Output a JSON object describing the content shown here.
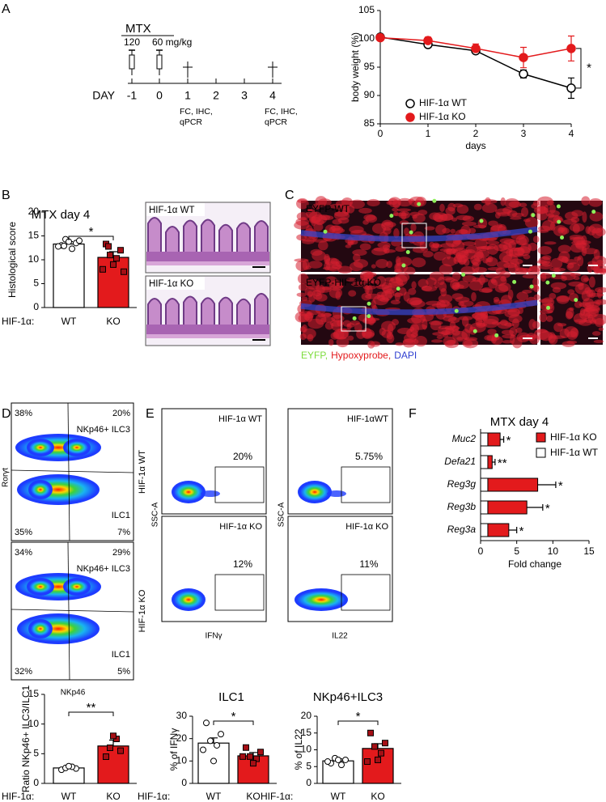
{
  "panels": [
    "A",
    "B",
    "C",
    "D",
    "E",
    "F"
  ],
  "timeline": {
    "drug": "MTX",
    "doses": [
      "120",
      "60 mg/kg"
    ],
    "day_label": "DAY",
    "days": [
      "-1",
      "0",
      "1",
      "2",
      "3",
      "4"
    ],
    "readouts": [
      [
        "FC, IHC,",
        "qPCR"
      ],
      [
        "FC, IHC,",
        "qPCR"
      ]
    ]
  },
  "histology": {
    "labels": [
      "HIF-1α WT",
      "HIF-1α KO"
    ]
  },
  "fluorescence": {
    "labels": [
      "EYFP-WT",
      "EYFP-HIF-1α KO"
    ],
    "legend": [
      {
        "text": "EYFP,",
        "color": "#7ddc3c"
      },
      {
        "text": "Hypoxyprobe,",
        "color": "#e31a1c"
      },
      {
        "text": "DAPI",
        "color": "#2f3fd0"
      }
    ]
  },
  "flow_D": {
    "y_label": "Rorγt",
    "x_label": "NKp46",
    "plots": [
      {
        "tl": "38%",
        "tr": "20%",
        "upper_gate": "NKp46+ ILC3",
        "lower_gate": "ILC1",
        "bl": "35%",
        "br": "7%",
        "group": "HIF-1α WT"
      },
      {
        "tl": "34%",
        "tr": "29%",
        "upper_gate": "NKp46+ ILC3",
        "lower_gate": "ILC1",
        "bl": "32%",
        "br": "5%",
        "group": "HIF-1α KO"
      }
    ]
  },
  "flow_E": {
    "columns": [
      {
        "x_label": "IFNγ",
        "y_label": "SSC-A",
        "plots": [
          {
            "group": "HIF-1α WT",
            "gate": "20%"
          },
          {
            "group": "HIF-1α KO",
            "gate": "12%"
          }
        ]
      },
      {
        "x_label": "IL22",
        "y_label": "SSC-A",
        "plots": [
          {
            "group": "HIF-1αWT",
            "gate": "5.75%"
          },
          {
            "group": "HIF-1α KO",
            "gate": "11%"
          }
        ]
      }
    ]
  },
  "chart_data": [
    {
      "type": "line",
      "x": [
        0,
        1,
        2,
        3,
        4
      ],
      "xlim": [
        0,
        4
      ],
      "xticks": [
        0,
        1,
        2,
        3,
        4
      ],
      "ylim": [
        85,
        105
      ],
      "yticks": [
        85,
        90,
        95,
        100,
        105
      ],
      "x_label": "days",
      "y_label": "body weight (%)",
      "annotation": "*",
      "series": [
        {
          "name": "HIF-1α WT",
          "color": "#000000",
          "marker": "open",
          "values": [
            100.3,
            99,
            97.9,
            93.8,
            91.3
          ],
          "errors": [
            0.5,
            0.4,
            0.4,
            0.7,
            1.8
          ]
        },
        {
          "name": "HIF-1α KO",
          "color": "#e31a1c",
          "marker": "filled",
          "values": [
            100.2,
            99.7,
            98.3,
            96.7,
            98.3
          ],
          "errors": [
            0.3,
            0.6,
            0.8,
            1.8,
            2.2
          ]
        }
      ]
    },
    {
      "type": "bar",
      "title": "MTX day 4",
      "category_label": "HIF-1α:",
      "categories": [
        "WT",
        "KO"
      ],
      "values": [
        13.3,
        10.5
      ],
      "errors": [
        0.5,
        1.2
      ],
      "points": [
        [
          13,
          13.5,
          14.3,
          12.3,
          13.8,
          12.8,
          14,
          12.9
        ],
        [
          13.3,
          12,
          11,
          10.3,
          9,
          8,
          7.5,
          12.8
        ]
      ],
      "colors": [
        "#ffffff",
        "#e31a1c"
      ],
      "point_colors": [
        "#ffffff",
        "#a50f15"
      ],
      "ylim": [
        0,
        20
      ],
      "yticks": [
        0,
        5,
        10,
        15,
        20
      ],
      "y_label": "Histological score",
      "annotation": "*"
    },
    {
      "type": "barh",
      "title": "MTX day 4",
      "categories": [
        "Muc2",
        "Defa21",
        "Reg3g",
        "Reg3b",
        "Reg3a"
      ],
      "series": [
        {
          "name": "HIF-1α KO",
          "color": "#e31a1c",
          "values": [
            2.7,
            1.6,
            7.9,
            6.4,
            3.9
          ],
          "errors": [
            0.5,
            0.4,
            2.5,
            2.2,
            1.1
          ]
        },
        {
          "name": "HIF-1α WT",
          "color": "#ffffff",
          "values": [
            1,
            1,
            1,
            1,
            1
          ]
        }
      ],
      "annotations": [
        "*",
        "**",
        "*",
        "*",
        "*"
      ],
      "xlim": [
        0,
        15
      ],
      "xticks": [
        0,
        5,
        10,
        15
      ],
      "x_label": "Fold change"
    },
    {
      "type": "bar",
      "category_label": "HIF-1α:",
      "categories": [
        "WT",
        "KO"
      ],
      "values": [
        2.6,
        6.3
      ],
      "errors": [
        0.2,
        1.0
      ],
      "points": [
        [
          2.3,
          2.5,
          2.6,
          2.8,
          2.9
        ],
        [
          4.5,
          5.5,
          6,
          7.5,
          8
        ]
      ],
      "colors": [
        "#ffffff",
        "#e31a1c"
      ],
      "point_colors": [
        "#ffffff",
        "#a50f15"
      ],
      "ylim": [
        0,
        15
      ],
      "yticks": [
        0,
        5,
        10,
        15
      ],
      "y_label": "Ratio NKp46+ ILC3/ILC1",
      "annotation": "**"
    },
    {
      "type": "bar",
      "title": "ILC1",
      "category_label": "HIF-1α:",
      "categories": [
        "WT",
        "KO"
      ],
      "values": [
        18,
        12.3
      ],
      "errors": [
        2.3,
        1.5
      ],
      "points": [
        [
          27,
          22,
          19,
          17,
          10,
          15
        ],
        [
          16,
          14,
          12,
          11,
          9,
          12
        ]
      ],
      "colors": [
        "#ffffff",
        "#e31a1c"
      ],
      "point_colors": [
        "#ffffff",
        "#a50f15"
      ],
      "ylim": [
        0,
        30
      ],
      "yticks": [
        0,
        10,
        20,
        30
      ],
      "y_label": "% of IFNγ",
      "annotation": "*"
    },
    {
      "type": "bar",
      "title": "NKp46+ILC3",
      "category_label": "HIF-1α:",
      "categories": [
        "WT",
        "KO"
      ],
      "values": [
        6.7,
        10.4
      ],
      "errors": [
        0.6,
        1.4
      ],
      "points": [
        [
          6,
          7,
          7.5,
          5.5,
          7,
          6.5
        ],
        [
          15,
          12,
          11,
          9,
          7,
          6.5
        ]
      ],
      "colors": [
        "#ffffff",
        "#e31a1c"
      ],
      "point_colors": [
        "#ffffff",
        "#a50f15"
      ],
      "ylim": [
        0,
        20
      ],
      "yticks": [
        0,
        5,
        10,
        15,
        20
      ],
      "y_label": "% of IL22",
      "annotation": "*"
    }
  ]
}
